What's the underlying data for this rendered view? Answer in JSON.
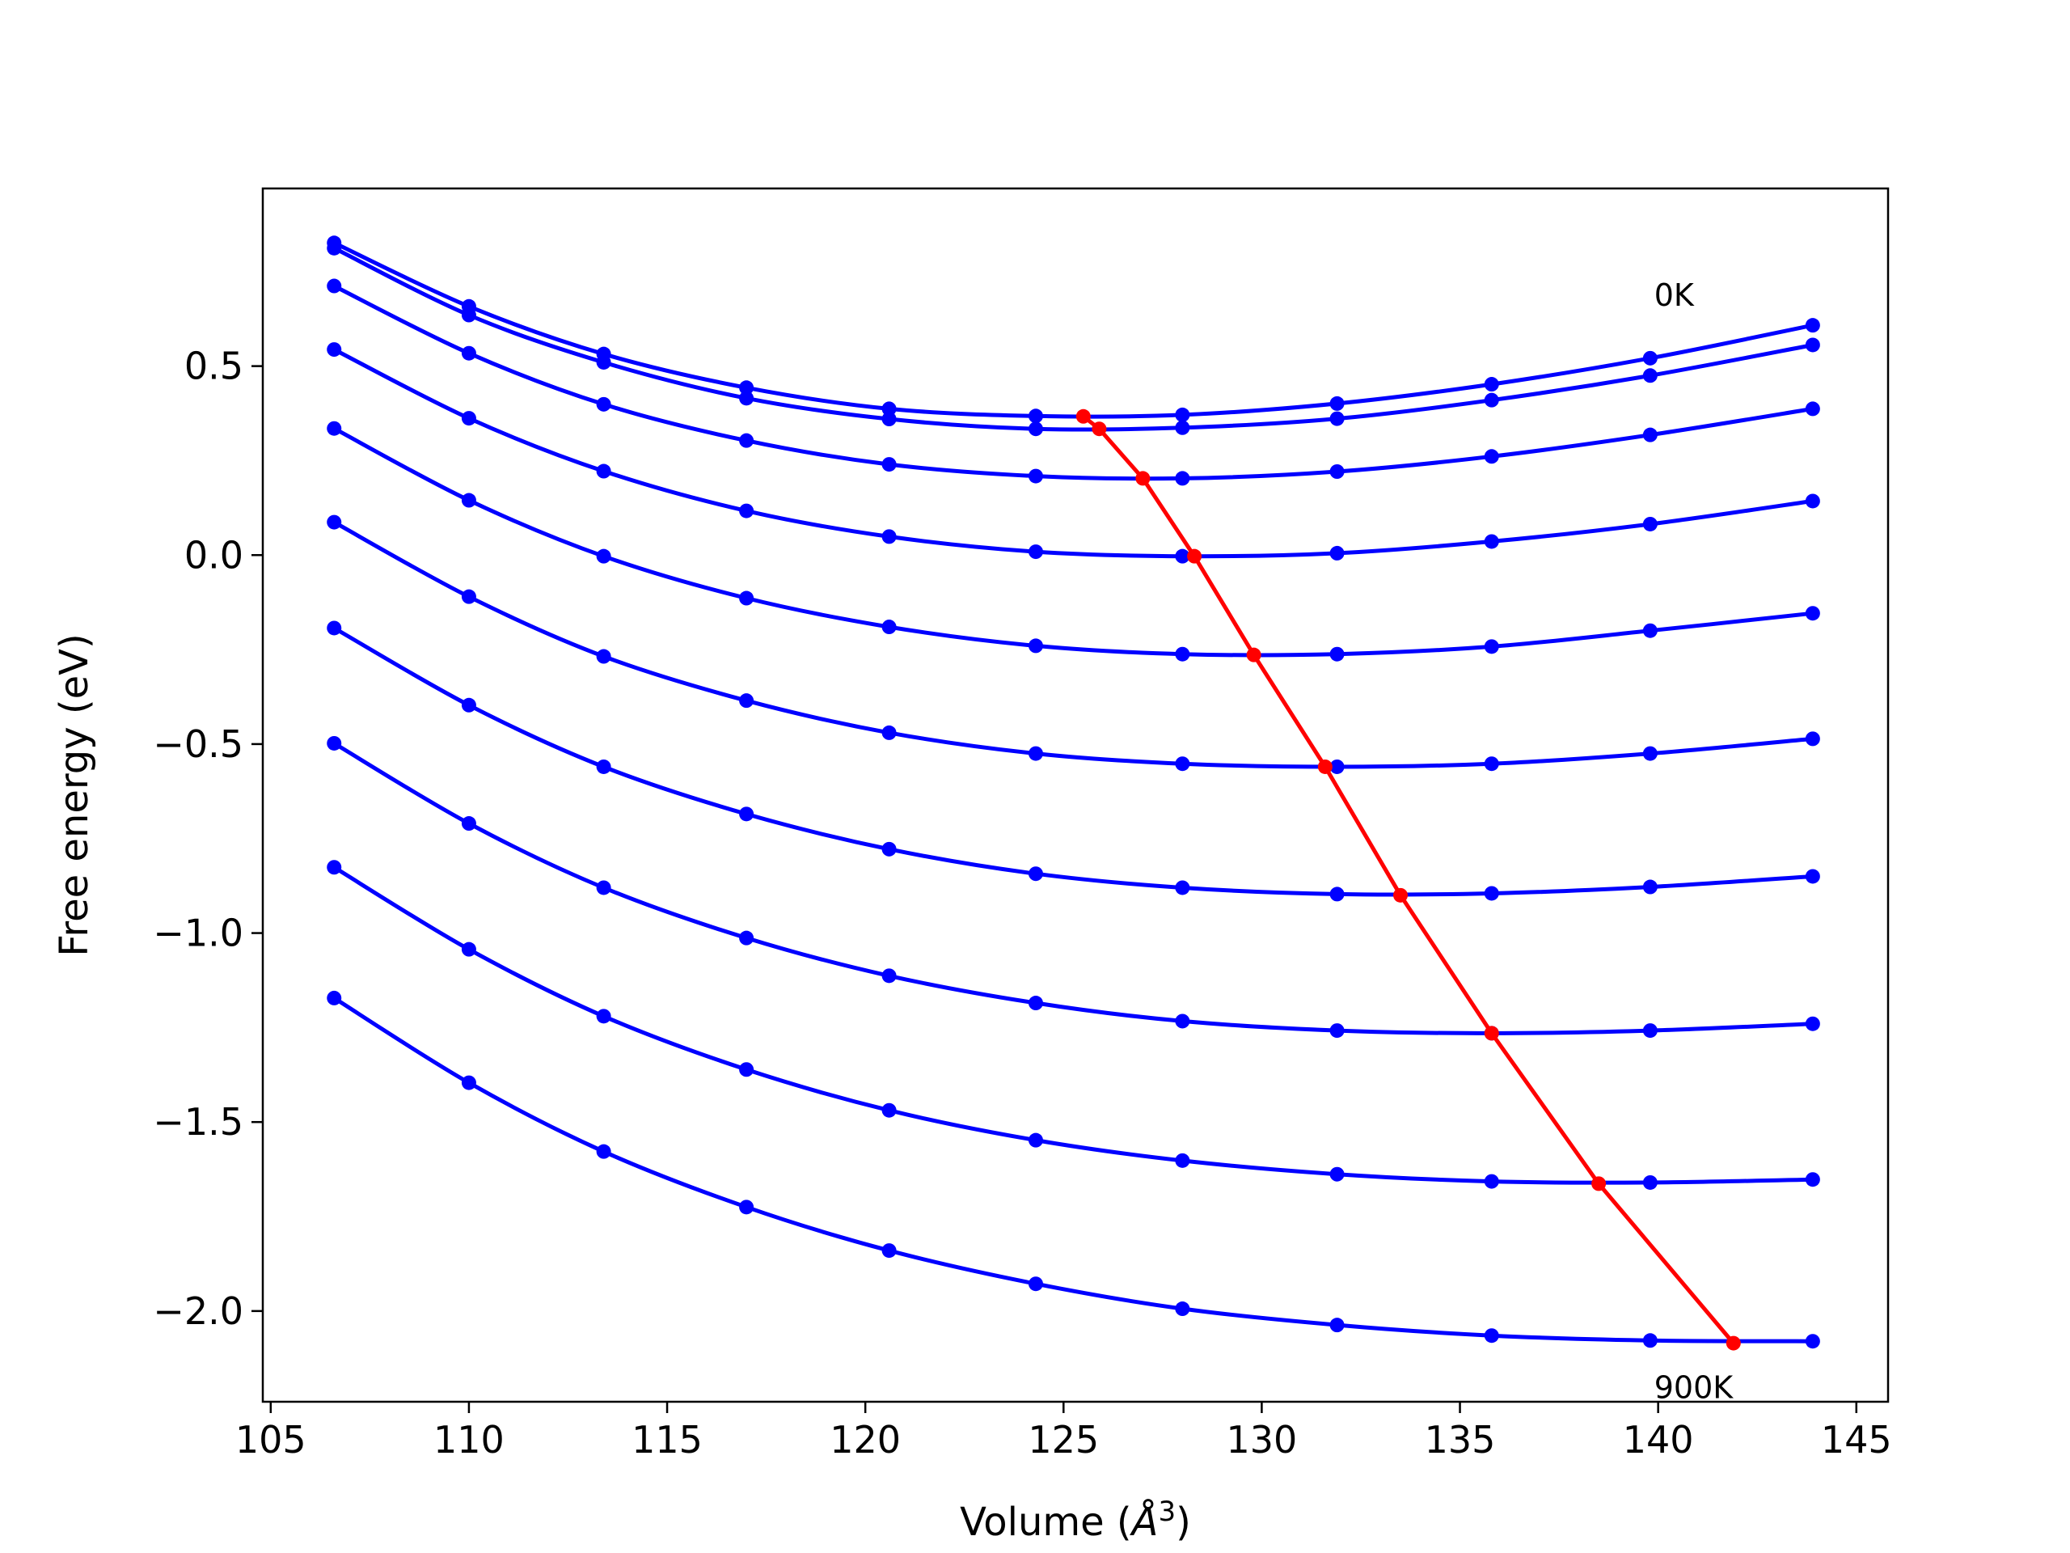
{
  "chart_data": {
    "type": "line",
    "xlabel": "Volume (",
    "xlabel_unit": "Å",
    "xlabel_exp": "3",
    "xlabel_close": ")",
    "ylabel": "Free energy (eV)",
    "xlim": [
      104.8,
      145.8
    ],
    "ylim": [
      -2.24,
      0.97
    ],
    "xticks": [
      105,
      110,
      115,
      120,
      125,
      130,
      135,
      140,
      145
    ],
    "yticks": [
      0.5,
      0.0,
      -0.5,
      -1.0,
      -1.5,
      -2.0
    ],
    "ytick_labels": [
      "0.5",
      "0.0",
      "−0.5",
      "−1.0",
      "−1.5",
      "−2.0"
    ],
    "annotations": [
      {
        "text": "0K",
        "x": 139.9,
        "y": 0.66
      },
      {
        "text": "900K",
        "x": 139.9,
        "y": -2.23
      }
    ],
    "x": [
      106.6,
      110.0,
      113.4,
      117.0,
      120.6,
      124.3,
      128.0,
      131.9,
      135.8,
      139.8,
      143.9
    ],
    "series": [
      {
        "values": [
          0.826,
          0.658,
          0.532,
          0.443,
          0.387,
          0.368,
          0.371,
          0.401,
          0.452,
          0.521,
          0.608
        ]
      },
      {
        "values": [
          0.812,
          0.635,
          0.51,
          0.415,
          0.36,
          0.334,
          0.337,
          0.361,
          0.41,
          0.475,
          0.556
        ]
      },
      {
        "values": [
          0.712,
          0.534,
          0.399,
          0.303,
          0.24,
          0.209,
          0.203,
          0.221,
          0.261,
          0.318,
          0.387
        ]
      },
      {
        "values": [
          0.544,
          0.362,
          0.222,
          0.117,
          0.049,
          0.009,
          -0.003,
          0.005,
          0.036,
          0.082,
          0.143
        ]
      },
      {
        "values": [
          0.335,
          0.145,
          -0.003,
          -0.114,
          -0.19,
          -0.24,
          -0.262,
          -0.262,
          -0.242,
          -0.2,
          -0.154
        ]
      },
      {
        "values": [
          0.087,
          -0.11,
          -0.268,
          -0.385,
          -0.47,
          -0.525,
          -0.552,
          -0.56,
          -0.552,
          -0.525,
          -0.486
        ]
      },
      {
        "values": [
          -0.193,
          -0.397,
          -0.56,
          -0.685,
          -0.778,
          -0.843,
          -0.88,
          -0.897,
          -0.895,
          -0.878,
          -0.85
        ]
      },
      {
        "values": [
          -0.498,
          -0.71,
          -0.88,
          -1.013,
          -1.113,
          -1.185,
          -1.233,
          -1.258,
          -1.265,
          -1.258,
          -1.24
        ]
      },
      {
        "values": [
          -0.826,
          -1.043,
          -1.22,
          -1.361,
          -1.469,
          -1.548,
          -1.602,
          -1.638,
          -1.657,
          -1.66,
          -1.652
        ]
      },
      {
        "values": [
          -1.172,
          -1.396,
          -1.578,
          -1.725,
          -1.84,
          -1.928,
          -1.994,
          -2.037,
          -2.065,
          -2.078,
          -2.08
        ]
      }
    ],
    "equilibrium": {
      "x": [
        125.5,
        125.9,
        127.0,
        128.3,
        129.8,
        131.6,
        133.5,
        135.8,
        138.5,
        141.9
      ],
      "y": [
        0.367,
        0.334,
        0.203,
        -0.003,
        -0.264,
        -0.56,
        -0.9,
        -1.265,
        -1.663,
        -2.085
      ]
    },
    "colors": {
      "series": "#0000ff",
      "equilibrium": "#ff0000",
      "axes": "#000000"
    }
  }
}
